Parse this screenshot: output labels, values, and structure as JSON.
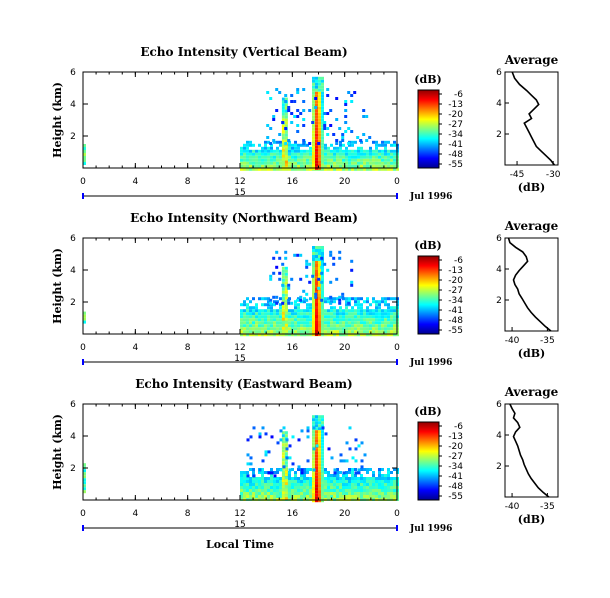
{
  "figure": {
    "xlabel_bottom": "Local Time",
    "date_label": "Jul 1996",
    "colorbar_label": "(dB)",
    "colorbar_ticks": [
      "-6",
      "-13",
      "-20",
      "-27",
      "-34",
      "-41",
      "-48",
      "-55"
    ],
    "avg_title": "Average",
    "avg_xlabel": "(dB)"
  },
  "chart_data": [
    {
      "type": "heatmap",
      "title": "Echo Intensity (Vertical Beam)",
      "ylabel": "Height (km)",
      "xlim": [
        0,
        24
      ],
      "x_ticks": [
        "0",
        "4",
        "8",
        "12",
        "16",
        "20",
        "0"
      ],
      "ylim": [
        0,
        6
      ],
      "y_ticks": [
        "6",
        "4",
        "2"
      ],
      "day_label": "15",
      "colorbar_range_db": [
        -55,
        -6
      ],
      "features": [
        {
          "name": "clutter",
          "t0": 0,
          "t1": 0.2,
          "h0": 0.2,
          "h1": 1.5
        },
        {
          "name": "boundary-layer",
          "t0": 12,
          "t1": 24,
          "h0": 0,
          "h1": 1.7
        },
        {
          "name": "plume-1",
          "t0": 15.2,
          "t1": 15.6,
          "h0": 0,
          "h1": 4.4
        },
        {
          "name": "plume-2",
          "t0": 17.5,
          "t1": 18.3,
          "h0": 0,
          "h1": 5.7
        },
        {
          "name": "scatter",
          "t0": 14,
          "t1": 22,
          "h0": 1.5,
          "h1": 5
        }
      ]
    },
    {
      "type": "line",
      "title": "Average",
      "xlabel": "(dB)",
      "x_ticks": [
        "-45",
        "-30"
      ],
      "xlim": [
        -50,
        -28
      ],
      "y_ticks": [
        "6",
        "4",
        "2"
      ],
      "ylim": [
        0,
        6
      ],
      "points": [
        [
          -47,
          6
        ],
        [
          -46,
          5.6
        ],
        [
          -44,
          5.2
        ],
        [
          -41,
          4.8
        ],
        [
          -39,
          4.5
        ],
        [
          -37,
          4.2
        ],
        [
          -36,
          3.9
        ],
        [
          -38,
          3.6
        ],
        [
          -40,
          3.3
        ],
        [
          -39,
          3.0
        ],
        [
          -42,
          2.7
        ],
        [
          -41,
          2.4
        ],
        [
          -40,
          2.1
        ],
        [
          -39,
          1.8
        ],
        [
          -38,
          1.5
        ],
        [
          -37,
          1.2
        ],
        [
          -35,
          0.9
        ],
        [
          -33,
          0.6
        ],
        [
          -31,
          0.3
        ],
        [
          -29.5,
          0
        ]
      ]
    },
    {
      "type": "heatmap",
      "title": "Echo Intensity (Northward Beam)",
      "ylabel": "Height (km)",
      "xlim": [
        0,
        24
      ],
      "x_ticks": [
        "0",
        "4",
        "8",
        "12",
        "16",
        "20",
        "0"
      ],
      "ylim": [
        0,
        6
      ],
      "y_ticks": [
        "6",
        "4",
        "2"
      ],
      "day_label": "15",
      "colorbar_range_db": [
        -55,
        -6
      ],
      "features": [
        {
          "name": "clutter",
          "t0": 0,
          "t1": 0.2,
          "h0": 0.8,
          "h1": 1.4
        },
        {
          "name": "boundary-layer",
          "t0": 12,
          "t1": 24,
          "h0": 0,
          "h1": 2.3
        },
        {
          "name": "plume-1",
          "t0": 15.2,
          "t1": 15.6,
          "h0": 0,
          "h1": 4.2
        },
        {
          "name": "plume-2",
          "t0": 17.5,
          "t1": 18.3,
          "h0": 0,
          "h1": 5.5
        },
        {
          "name": "scatter",
          "t0": 14,
          "t1": 20.5,
          "h0": 2,
          "h1": 5.2
        }
      ]
    },
    {
      "type": "line",
      "title": "Average",
      "xlabel": "(dB)",
      "x_ticks": [
        "-40",
        "-35"
      ],
      "xlim": [
        -41,
        -33.5
      ],
      "y_ticks": [
        "6",
        "4",
        "2"
      ],
      "ylim": [
        0,
        6
      ],
      "points": [
        [
          -40.5,
          6
        ],
        [
          -40.3,
          5.7
        ],
        [
          -39.5,
          5.4
        ],
        [
          -38.5,
          5.1
        ],
        [
          -38,
          4.8
        ],
        [
          -37.8,
          4.5
        ],
        [
          -38.4,
          4.2
        ],
        [
          -39,
          3.9
        ],
        [
          -39.5,
          3.6
        ],
        [
          -39.8,
          3.3
        ],
        [
          -39.6,
          3.0
        ],
        [
          -39.2,
          2.7
        ],
        [
          -39,
          2.4
        ],
        [
          -38.6,
          2.1
        ],
        [
          -38.2,
          1.8
        ],
        [
          -37.8,
          1.5
        ],
        [
          -37.3,
          1.2
        ],
        [
          -36.7,
          0.9
        ],
        [
          -36,
          0.6
        ],
        [
          -35.3,
          0.3
        ],
        [
          -34.5,
          0
        ]
      ]
    },
    {
      "type": "heatmap",
      "title": "Echo Intensity (Eastward Beam)",
      "ylabel": "Height (km)",
      "xlim": [
        0,
        24
      ],
      "x_ticks": [
        "0",
        "4",
        "8",
        "12",
        "16",
        "20",
        "0"
      ],
      "ylim": [
        0,
        6
      ],
      "y_ticks": [
        "6",
        "4",
        "2"
      ],
      "day_label": "15",
      "colorbar_range_db": [
        -55,
        -6
      ],
      "features": [
        {
          "name": "clutter",
          "t0": 0,
          "t1": 0.2,
          "h0": 0.6,
          "h1": 2.3
        },
        {
          "name": "boundary-layer",
          "t0": 12,
          "t1": 24,
          "h0": 0,
          "h1": 2.0
        },
        {
          "name": "plume-1",
          "t0": 15.2,
          "t1": 15.6,
          "h0": 0,
          "h1": 4.3
        },
        {
          "name": "plume-2",
          "t0": 17.5,
          "t1": 18.3,
          "h0": 0,
          "h1": 5.3
        },
        {
          "name": "scatter",
          "t0": 12.5,
          "t1": 21.5,
          "h0": 1.5,
          "h1": 4.6
        }
      ]
    },
    {
      "type": "line",
      "title": "Average",
      "xlabel": "(dB)",
      "x_ticks": [
        "-40",
        "-35"
      ],
      "xlim": [
        -41,
        -33.5
      ],
      "y_ticks": [
        "6",
        "4",
        "2"
      ],
      "ylim": [
        0,
        6
      ],
      "points": [
        [
          -40.3,
          6
        ],
        [
          -40,
          5.7
        ],
        [
          -39.6,
          5.4
        ],
        [
          -39.8,
          5.1
        ],
        [
          -39.2,
          4.8
        ],
        [
          -38.9,
          4.5
        ],
        [
          -39.5,
          4.2
        ],
        [
          -39.8,
          3.9
        ],
        [
          -39.5,
          3.6
        ],
        [
          -39.2,
          3.3
        ],
        [
          -39,
          3.0
        ],
        [
          -38.8,
          2.7
        ],
        [
          -38.5,
          2.4
        ],
        [
          -38.3,
          2.1
        ],
        [
          -38,
          1.8
        ],
        [
          -37.7,
          1.5
        ],
        [
          -37.3,
          1.2
        ],
        [
          -36.8,
          0.9
        ],
        [
          -36.3,
          0.6
        ],
        [
          -35.6,
          0.3
        ],
        [
          -34.8,
          0
        ]
      ]
    }
  ]
}
